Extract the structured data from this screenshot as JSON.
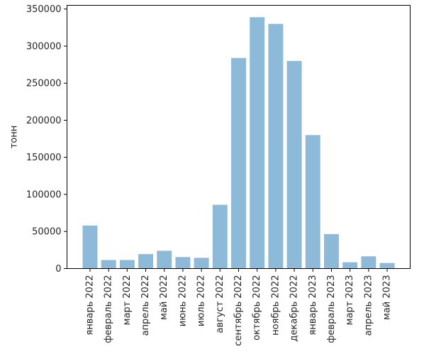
{
  "chart_data": {
    "type": "bar",
    "title": "",
    "xlabel": "",
    "ylabel": "тонн",
    "ylim": [
      0,
      355000
    ],
    "yticks": [
      0,
      50000,
      100000,
      150000,
      200000,
      250000,
      300000,
      350000
    ],
    "ytick_labels": [
      "0",
      "50000",
      "100000",
      "150000",
      "200000",
      "250000",
      "300000",
      "350000"
    ],
    "bar_color": "#8ebad9",
    "grid": false,
    "legend": "none",
    "categories": [
      "январь 2022",
      "февраль 2022",
      "март 2022",
      "апрель 2022",
      "май 2022",
      "июнь 2022",
      "июль 2022",
      "август 2022",
      "сентябрь 2022",
      "октябрь 2022",
      "ноябрь 2022",
      "декабрь 2022",
      "январь 2023",
      "февраль 2023",
      "март 2023",
      "апрель 2023",
      "май 2023"
    ],
    "values": [
      58000,
      11500,
      11500,
      19500,
      24000,
      15500,
      14500,
      86000,
      284000,
      339000,
      330000,
      280000,
      180000,
      46500,
      8500,
      16500,
      7500
    ]
  }
}
